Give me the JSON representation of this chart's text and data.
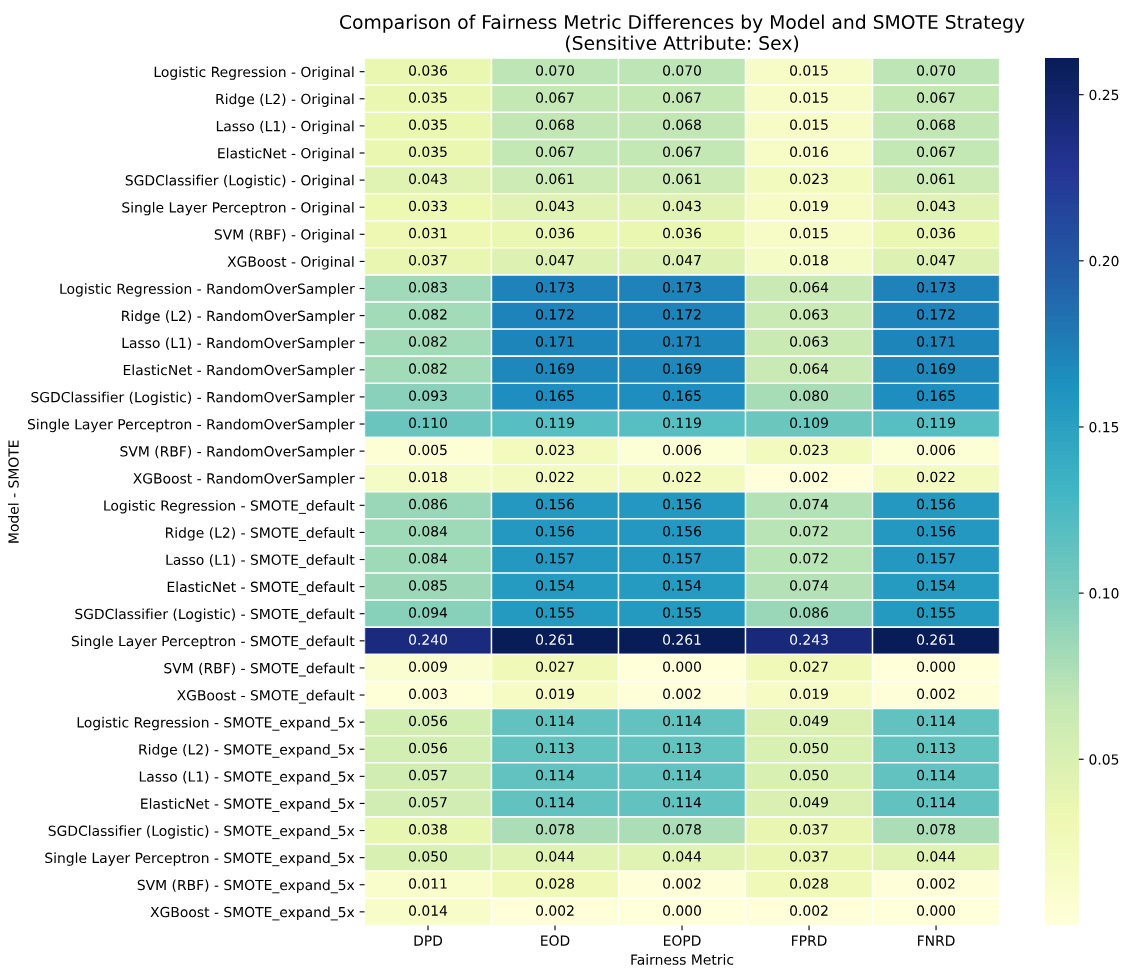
{
  "chart_data": {
    "type": "heatmap",
    "title": "Comparison of Fairness Metric Differences by Model and SMOTE Strategy\n(Sensitive Attribute: Sex)",
    "xlabel": "Fairness Metric",
    "ylabel": "Model - SMOTE",
    "categories": [
      "DPD",
      "EOD",
      "EOPD",
      "FPRD",
      "FNRD"
    ],
    "y_categories": [
      "Logistic Regression - Original",
      "Ridge (L2) - Original",
      "Lasso (L1) - Original",
      "ElasticNet - Original",
      "SGDClassifier (Logistic) - Original",
      "Single Layer Perceptron - Original",
      "SVM (RBF) - Original",
      "XGBoost - Original",
      "Logistic Regression - RandomOverSampler",
      "Ridge (L2) - RandomOverSampler",
      "Lasso (L1) - RandomOverSampler",
      "ElasticNet - RandomOverSampler",
      "SGDClassifier (Logistic) - RandomOverSampler",
      "Single Layer Perceptron - RandomOverSampler",
      "SVM (RBF) - RandomOverSampler",
      "XGBoost - RandomOverSampler",
      "Logistic Regression - SMOTE_default",
      "Ridge (L2) - SMOTE_default",
      "Lasso (L1) - SMOTE_default",
      "ElasticNet - SMOTE_default",
      "SGDClassifier (Logistic) - SMOTE_default",
      "Single Layer Perceptron - SMOTE_default",
      "SVM (RBF) - SMOTE_default",
      "XGBoost - SMOTE_default",
      "Logistic Regression - SMOTE_expand_5x",
      "Ridge (L2) - SMOTE_expand_5x",
      "Lasso (L1) - SMOTE_expand_5x",
      "ElasticNet - SMOTE_expand_5x",
      "SGDClassifier (Logistic) - SMOTE_expand_5x",
      "Single Layer Perceptron - SMOTE_expand_5x",
      "SVM (RBF) - SMOTE_expand_5x",
      "XGBoost - SMOTE_expand_5x"
    ],
    "cells": [
      [
        0.036,
        0.07,
        0.07,
        0.015,
        0.07
      ],
      [
        0.035,
        0.067,
        0.067,
        0.015,
        0.067
      ],
      [
        0.035,
        0.068,
        0.068,
        0.015,
        0.068
      ],
      [
        0.035,
        0.067,
        0.067,
        0.016,
        0.067
      ],
      [
        0.043,
        0.061,
        0.061,
        0.023,
        0.061
      ],
      [
        0.033,
        0.043,
        0.043,
        0.019,
        0.043
      ],
      [
        0.031,
        0.036,
        0.036,
        0.015,
        0.036
      ],
      [
        0.037,
        0.047,
        0.047,
        0.018,
        0.047
      ],
      [
        0.083,
        0.173,
        0.173,
        0.064,
        0.173
      ],
      [
        0.082,
        0.172,
        0.172,
        0.063,
        0.172
      ],
      [
        0.082,
        0.171,
        0.171,
        0.063,
        0.171
      ],
      [
        0.082,
        0.169,
        0.169,
        0.064,
        0.169
      ],
      [
        0.093,
        0.165,
        0.165,
        0.08,
        0.165
      ],
      [
        0.11,
        0.119,
        0.119,
        0.109,
        0.119
      ],
      [
        0.005,
        0.023,
        0.006,
        0.023,
        0.006
      ],
      [
        0.018,
        0.022,
        0.022,
        0.002,
        0.022
      ],
      [
        0.086,
        0.156,
        0.156,
        0.074,
        0.156
      ],
      [
        0.084,
        0.156,
        0.156,
        0.072,
        0.156
      ],
      [
        0.084,
        0.157,
        0.157,
        0.072,
        0.157
      ],
      [
        0.085,
        0.154,
        0.154,
        0.074,
        0.154
      ],
      [
        0.094,
        0.155,
        0.155,
        0.086,
        0.155
      ],
      [
        0.24,
        0.261,
        0.261,
        0.243,
        0.261
      ],
      [
        0.009,
        0.027,
        0.0,
        0.027,
        0.0
      ],
      [
        0.003,
        0.019,
        0.002,
        0.019,
        0.002
      ],
      [
        0.056,
        0.114,
        0.114,
        0.049,
        0.114
      ],
      [
        0.056,
        0.113,
        0.113,
        0.05,
        0.113
      ],
      [
        0.057,
        0.114,
        0.114,
        0.05,
        0.114
      ],
      [
        0.057,
        0.114,
        0.114,
        0.049,
        0.114
      ],
      [
        0.038,
        0.078,
        0.078,
        0.037,
        0.078
      ],
      [
        0.05,
        0.044,
        0.044,
        0.037,
        0.044
      ],
      [
        0.011,
        0.028,
        0.002,
        0.028,
        0.002
      ],
      [
        0.014,
        0.002,
        0.0,
        0.002,
        0.0
      ]
    ],
    "cell_labels": [
      [
        "0.036",
        "0.070",
        "0.070",
        "0.015",
        "0.070"
      ],
      [
        "0.035",
        "0.067",
        "0.067",
        "0.015",
        "0.067"
      ],
      [
        "0.035",
        "0.068",
        "0.068",
        "0.015",
        "0.068"
      ],
      [
        "0.035",
        "0.067",
        "0.067",
        "0.016",
        "0.067"
      ],
      [
        "0.043",
        "0.061",
        "0.061",
        "0.023",
        "0.061"
      ],
      [
        "0.033",
        "0.043",
        "0.043",
        "0.019",
        "0.043"
      ],
      [
        "0.031",
        "0.036",
        "0.036",
        "0.015",
        "0.036"
      ],
      [
        "0.037",
        "0.047",
        "0.047",
        "0.018",
        "0.047"
      ],
      [
        "0.083",
        "0.173",
        "0.173",
        "0.064",
        "0.173"
      ],
      [
        "0.082",
        "0.172",
        "0.172",
        "0.063",
        "0.172"
      ],
      [
        "0.082",
        "0.171",
        "0.171",
        "0.063",
        "0.171"
      ],
      [
        "0.082",
        "0.169",
        "0.169",
        "0.064",
        "0.169"
      ],
      [
        "0.093",
        "0.165",
        "0.165",
        "0.080",
        "0.165"
      ],
      [
        "0.110",
        "0.119",
        "0.119",
        "0.109",
        "0.119"
      ],
      [
        "0.005",
        "0.023",
        "0.006",
        "0.023",
        "0.006"
      ],
      [
        "0.018",
        "0.022",
        "0.022",
        "0.002",
        "0.022"
      ],
      [
        "0.086",
        "0.156",
        "0.156",
        "0.074",
        "0.156"
      ],
      [
        "0.084",
        "0.156",
        "0.156",
        "0.072",
        "0.156"
      ],
      [
        "0.084",
        "0.157",
        "0.157",
        "0.072",
        "0.157"
      ],
      [
        "0.085",
        "0.154",
        "0.154",
        "0.074",
        "0.154"
      ],
      [
        "0.094",
        "0.155",
        "0.155",
        "0.086",
        "0.155"
      ],
      [
        "0.240",
        "0.261",
        "0.261",
        "0.243",
        "0.261"
      ],
      [
        "0.009",
        "0.027",
        "0.000",
        "0.027",
        "0.000"
      ],
      [
        "0.003",
        "0.019",
        "0.002",
        "0.019",
        "0.002"
      ],
      [
        "0.056",
        "0.114",
        "0.114",
        "0.049",
        "0.114"
      ],
      [
        "0.056",
        "0.113",
        "0.113",
        "0.050",
        "0.113"
      ],
      [
        "0.057",
        "0.114",
        "0.114",
        "0.050",
        "0.114"
      ],
      [
        "0.057",
        "0.114",
        "0.114",
        "0.049",
        "0.114"
      ],
      [
        "0.038",
        "0.078",
        "0.078",
        "0.037",
        "0.078"
      ],
      [
        "0.050",
        "0.044",
        "0.044",
        "0.037",
        "0.044"
      ],
      [
        "0.011",
        "0.028",
        "0.002",
        "0.028",
        "0.002"
      ],
      [
        "0.014",
        "0.002",
        "0.000",
        "0.002",
        "0.000"
      ]
    ],
    "clim": [
      0.0,
      0.261
    ],
    "cticks": [
      {
        "value": 0.05,
        "label": "0.05"
      },
      {
        "value": 0.1,
        "label": "0.10"
      },
      {
        "value": 0.15,
        "label": "0.15"
      },
      {
        "value": 0.2,
        "label": "0.20"
      },
      {
        "value": 0.25,
        "label": "0.25"
      }
    ]
  }
}
